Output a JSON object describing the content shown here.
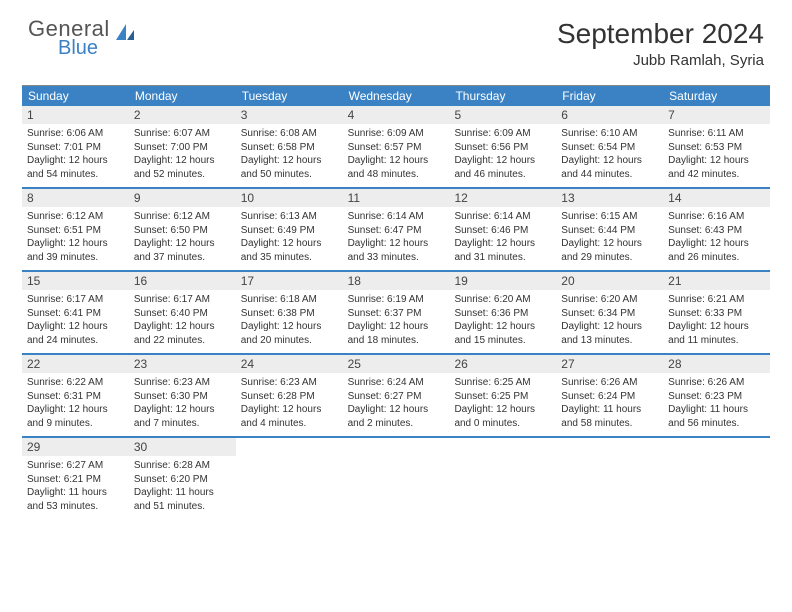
{
  "brand": {
    "word1": "General",
    "word2": "Blue"
  },
  "colors": {
    "header_bar": "#3b82c4",
    "daynum_bg": "#ededed",
    "week_divider": "#3b82c4",
    "top_rule": "#888888",
    "body_text": "#333333",
    "logo_gray": "#555555",
    "logo_blue": "#3b82c4"
  },
  "title": "September 2024",
  "location": "Jubb Ramlah, Syria",
  "weekdays": [
    "Sunday",
    "Monday",
    "Tuesday",
    "Wednesday",
    "Thursday",
    "Friday",
    "Saturday"
  ],
  "fonts": {
    "title_size": 28,
    "location_size": 15,
    "weekday_size": 12,
    "daynum_size": 12,
    "body_size": 10
  },
  "days": [
    {
      "n": "1",
      "sr": "6:06 AM",
      "ss": "7:01 PM",
      "dh": 12,
      "dm": 54
    },
    {
      "n": "2",
      "sr": "6:07 AM",
      "ss": "7:00 PM",
      "dh": 12,
      "dm": 52
    },
    {
      "n": "3",
      "sr": "6:08 AM",
      "ss": "6:58 PM",
      "dh": 12,
      "dm": 50
    },
    {
      "n": "4",
      "sr": "6:09 AM",
      "ss": "6:57 PM",
      "dh": 12,
      "dm": 48
    },
    {
      "n": "5",
      "sr": "6:09 AM",
      "ss": "6:56 PM",
      "dh": 12,
      "dm": 46
    },
    {
      "n": "6",
      "sr": "6:10 AM",
      "ss": "6:54 PM",
      "dh": 12,
      "dm": 44
    },
    {
      "n": "7",
      "sr": "6:11 AM",
      "ss": "6:53 PM",
      "dh": 12,
      "dm": 42
    },
    {
      "n": "8",
      "sr": "6:12 AM",
      "ss": "6:51 PM",
      "dh": 12,
      "dm": 39
    },
    {
      "n": "9",
      "sr": "6:12 AM",
      "ss": "6:50 PM",
      "dh": 12,
      "dm": 37
    },
    {
      "n": "10",
      "sr": "6:13 AM",
      "ss": "6:49 PM",
      "dh": 12,
      "dm": 35
    },
    {
      "n": "11",
      "sr": "6:14 AM",
      "ss": "6:47 PM",
      "dh": 12,
      "dm": 33
    },
    {
      "n": "12",
      "sr": "6:14 AM",
      "ss": "6:46 PM",
      "dh": 12,
      "dm": 31
    },
    {
      "n": "13",
      "sr": "6:15 AM",
      "ss": "6:44 PM",
      "dh": 12,
      "dm": 29
    },
    {
      "n": "14",
      "sr": "6:16 AM",
      "ss": "6:43 PM",
      "dh": 12,
      "dm": 26
    },
    {
      "n": "15",
      "sr": "6:17 AM",
      "ss": "6:41 PM",
      "dh": 12,
      "dm": 24
    },
    {
      "n": "16",
      "sr": "6:17 AM",
      "ss": "6:40 PM",
      "dh": 12,
      "dm": 22
    },
    {
      "n": "17",
      "sr": "6:18 AM",
      "ss": "6:38 PM",
      "dh": 12,
      "dm": 20
    },
    {
      "n": "18",
      "sr": "6:19 AM",
      "ss": "6:37 PM",
      "dh": 12,
      "dm": 18
    },
    {
      "n": "19",
      "sr": "6:20 AM",
      "ss": "6:36 PM",
      "dh": 12,
      "dm": 15
    },
    {
      "n": "20",
      "sr": "6:20 AM",
      "ss": "6:34 PM",
      "dh": 12,
      "dm": 13
    },
    {
      "n": "21",
      "sr": "6:21 AM",
      "ss": "6:33 PM",
      "dh": 12,
      "dm": 11
    },
    {
      "n": "22",
      "sr": "6:22 AM",
      "ss": "6:31 PM",
      "dh": 12,
      "dm": 9
    },
    {
      "n": "23",
      "sr": "6:23 AM",
      "ss": "6:30 PM",
      "dh": 12,
      "dm": 7
    },
    {
      "n": "24",
      "sr": "6:23 AM",
      "ss": "6:28 PM",
      "dh": 12,
      "dm": 4
    },
    {
      "n": "25",
      "sr": "6:24 AM",
      "ss": "6:27 PM",
      "dh": 12,
      "dm": 2
    },
    {
      "n": "26",
      "sr": "6:25 AM",
      "ss": "6:25 PM",
      "dh": 12,
      "dm": 0
    },
    {
      "n": "27",
      "sr": "6:26 AM",
      "ss": "6:24 PM",
      "dh": 11,
      "dm": 58
    },
    {
      "n": "28",
      "sr": "6:26 AM",
      "ss": "6:23 PM",
      "dh": 11,
      "dm": 56
    },
    {
      "n": "29",
      "sr": "6:27 AM",
      "ss": "6:21 PM",
      "dh": 11,
      "dm": 53
    },
    {
      "n": "30",
      "sr": "6:28 AM",
      "ss": "6:20 PM",
      "dh": 11,
      "dm": 51
    }
  ],
  "labels": {
    "sunrise": "Sunrise:",
    "sunset": "Sunset:",
    "daylight": "Daylight:",
    "hours": "hours",
    "and": "and",
    "minutes": "minutes."
  }
}
